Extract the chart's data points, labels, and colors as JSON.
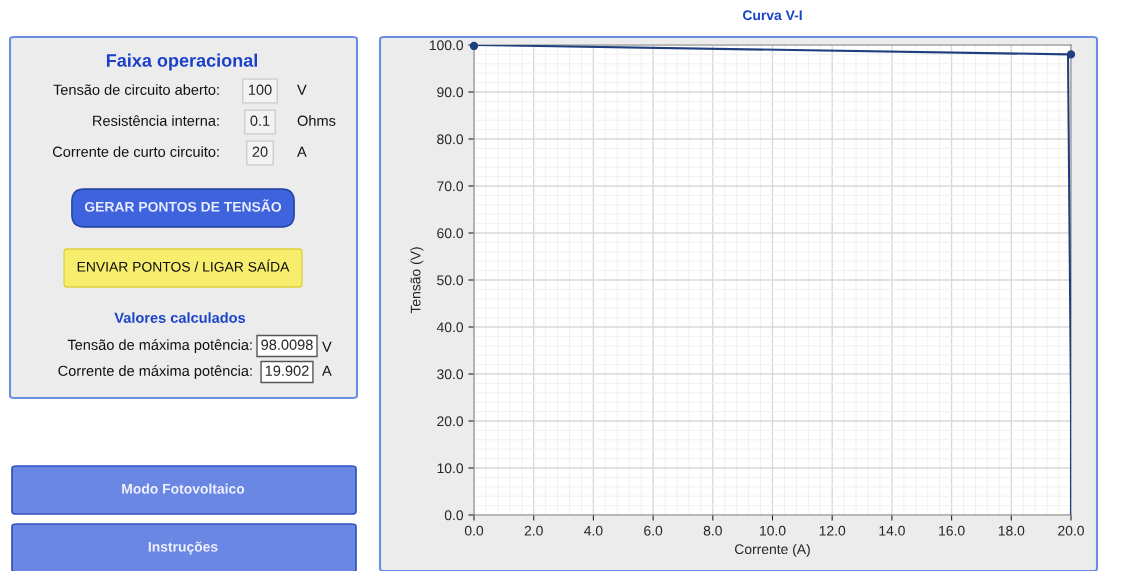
{
  "chart_data": {
    "type": "line",
    "title": "Curva V-I",
    "xlabel": "Corrente (A)",
    "ylabel": "Tensão (V)",
    "series": [
      {
        "color": "#1f3f7f",
        "x": [
          0,
          19.9,
          20,
          20
        ],
        "values": [
          100,
          98.0,
          24,
          0
        ],
        "marker": "none"
      },
      {
        "type": "scatter",
        "color": "#1f3f7f",
        "x": [
          0,
          20
        ],
        "values": [
          99.8,
          98.0
        ],
        "marker": "circle"
      }
    ],
    "xlim": [
      0,
      20
    ],
    "ylim": [
      0,
      100
    ],
    "xticks": [
      {
        "value": 0,
        "label": "0.0"
      },
      {
        "value": 2,
        "label": "2.0"
      },
      {
        "value": 4,
        "label": "4.0"
      },
      {
        "value": 6,
        "label": "6.0"
      },
      {
        "value": 8,
        "label": "8.0"
      },
      {
        "value": 10,
        "label": "10.0"
      },
      {
        "value": 12,
        "label": "12.0"
      },
      {
        "value": 14,
        "label": "14.0"
      },
      {
        "value": 16,
        "label": "16.0"
      },
      {
        "value": 18,
        "label": "18.0"
      },
      {
        "value": 20,
        "label": "20.0"
      }
    ],
    "yticks": [
      {
        "value": 0,
        "label": "0.0"
      },
      {
        "value": 10,
        "label": "10.0"
      },
      {
        "value": 20,
        "label": "20.0"
      },
      {
        "value": 30,
        "label": "30.0"
      },
      {
        "value": 40,
        "label": "40.0"
      },
      {
        "value": 50,
        "label": "50.0"
      },
      {
        "value": 60,
        "label": "60.0"
      },
      {
        "value": 70,
        "label": "70.0"
      },
      {
        "value": 80,
        "label": "80.0"
      },
      {
        "value": 90,
        "label": "90.0"
      },
      {
        "value": 100,
        "label": "100.0"
      }
    ],
    "grid": true,
    "annotations": [
      "Faixa operacional",
      "Tensão de circuito aberto:",
      "100",
      "V",
      "Resistência interna:",
      "0.1",
      "Ohms",
      "Corrente de curto circuito:",
      "20",
      "A",
      "GERAR PONTOS DE TENSÃO",
      "ENVIAR PONTOS / LIGAR SAÍDA",
      "Valores calculados",
      "Tensão de máxima potência:",
      "98.0098",
      "V",
      "Corrente de máxima potência:",
      "19.902",
      "A",
      "Modo Fotovoltaico",
      "Instruções"
    ]
  }
}
